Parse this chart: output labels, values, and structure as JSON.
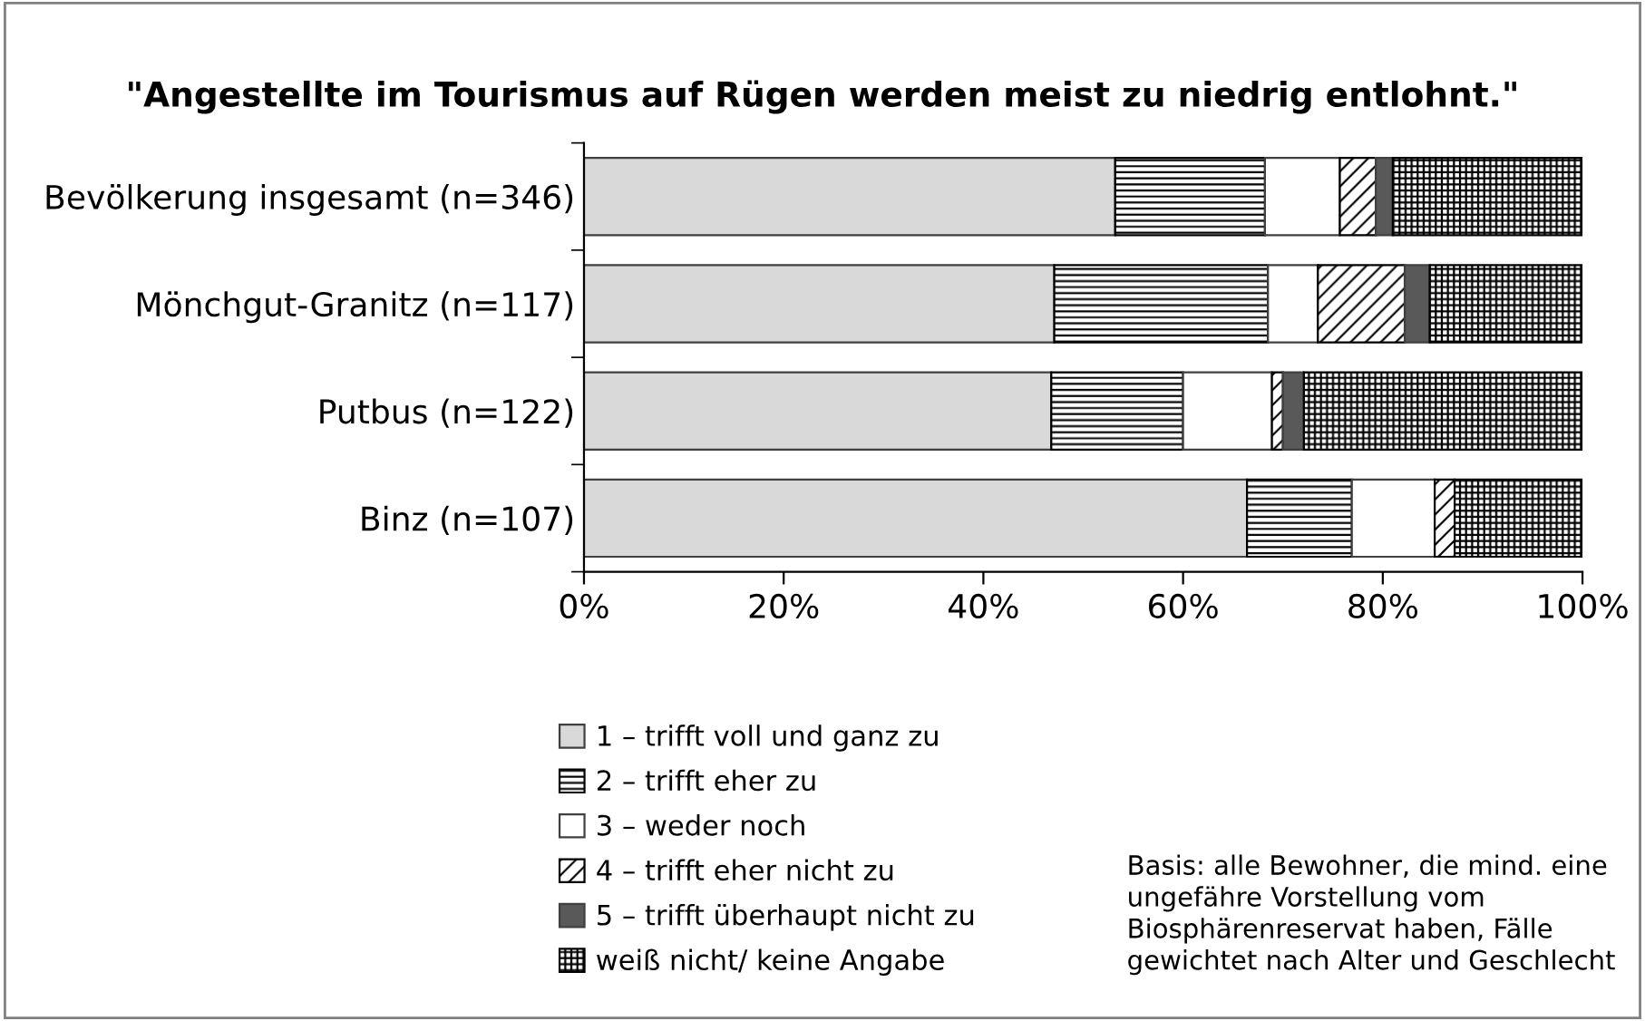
{
  "chart_data": {
    "type": "bar",
    "orientation": "horizontal",
    "stacked": true,
    "title": "\"Angestellte im Tourismus auf Rügen werden meist zu niedrig entlohnt.\"",
    "categories": [
      "Bevölkerung insgesamt (n=346)",
      "Mönchgut-Granitz (n=117)",
      "Putbus (n=122)",
      "Binz (n=107)"
    ],
    "series": [
      {
        "name": "1 – trifft voll und ganz zu",
        "color": "#d9d9d9",
        "values": [
          53.2,
          47.1,
          46.8,
          66.4
        ]
      },
      {
        "name": "2 – trifft eher zu",
        "color": "#000000",
        "values": [
          15.0,
          21.4,
          13.2,
          10.5
        ]
      },
      {
        "name": "3 – weder noch",
        "color": "#ffffff",
        "values": [
          7.5,
          5.0,
          8.9,
          8.3
        ]
      },
      {
        "name": "4 – trifft eher nicht zu",
        "color": "#000000",
        "values": [
          3.6,
          8.7,
          1.1,
          2.0
        ]
      },
      {
        "name": "5 – trifft überhaupt nicht zu",
        "color": "#595959",
        "values": [
          1.7,
          2.5,
          2.1,
          0
        ]
      },
      {
        "name": "weiß nicht/ keine Angabe",
        "color": "#000000",
        "values": [
          19.0,
          15.3,
          27.9,
          12.8
        ]
      }
    ],
    "xlim": [
      0,
      100
    ],
    "xticks": [
      {
        "value": 0,
        "label": "0%"
      },
      {
        "value": 20,
        "label": "20%"
      },
      {
        "value": 40,
        "label": "40%"
      },
      {
        "value": 60,
        "label": "60%"
      },
      {
        "value": 80,
        "label": "80%"
      },
      {
        "value": 100,
        "label": "100%"
      }
    ],
    "grid": false,
    "legend": "bottom left",
    "annotations": [
      "Basis: alle Bewohner, die mind. eine ungefähre Vorstellung vom Biosphärenreservat haben, Fälle gewichtet nach Alter und Geschlecht"
    ]
  }
}
